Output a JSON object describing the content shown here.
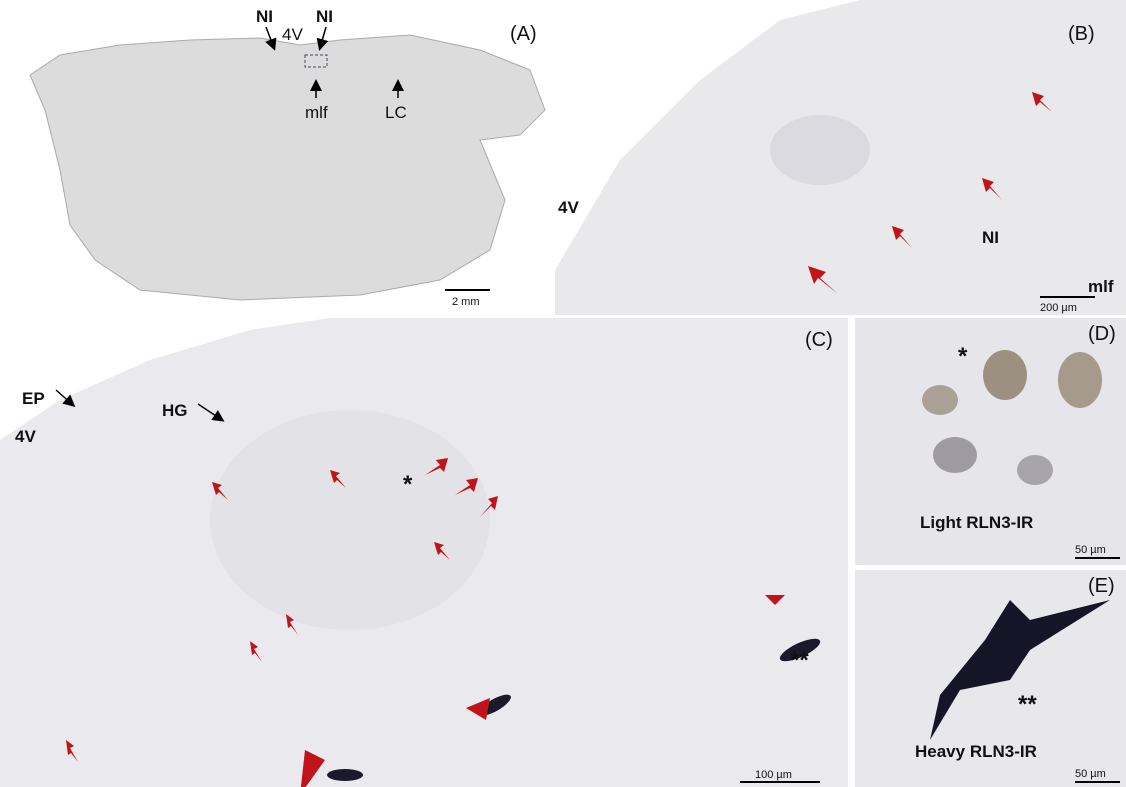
{
  "panels": [
    {
      "label": "(A)",
      "annotations": [
        "NI",
        "4V",
        "NI",
        "mlf",
        "LC"
      ],
      "scale_bar": "2 mm"
    },
    {
      "label": "(B)",
      "annotations": [
        "4V",
        "NI",
        "mlf"
      ],
      "scale_bar": "200 µm"
    },
    {
      "label": "(C)",
      "annotations": [
        "EP",
        "HG",
        "4V",
        "*",
        "**"
      ],
      "scale_bar": "100 µm"
    },
    {
      "label": "(D)",
      "annotations": [
        "*",
        "Light RLN3-IR"
      ],
      "scale_bar": "50 µm"
    },
    {
      "label": "(E)",
      "annotations": [
        "**",
        "Heavy RLN3-IR"
      ],
      "scale_bar": "50 µm"
    }
  ]
}
